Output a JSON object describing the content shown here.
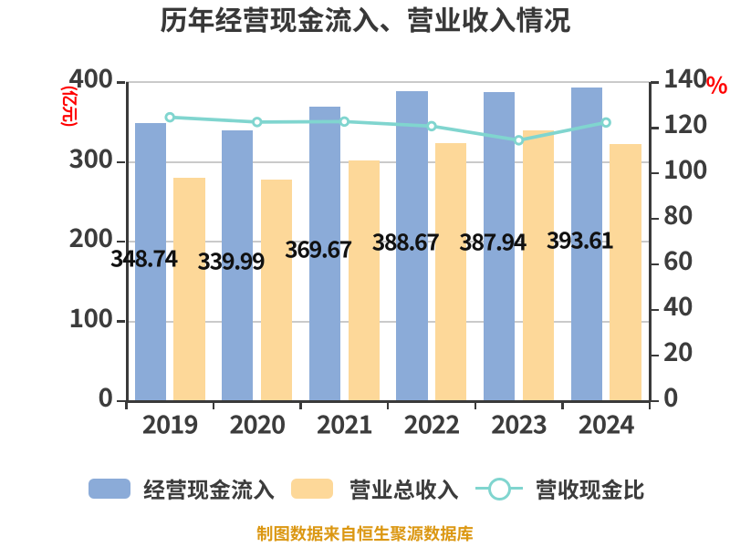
{
  "chart_data": {
    "type": "bar+line",
    "title": "历年经营现金流入、营业收入情况",
    "categories": [
      "2019",
      "2020",
      "2021",
      "2022",
      "2023",
      "2024"
    ],
    "series": [
      {
        "name": "经营现金流入",
        "type": "bar",
        "axis": "left",
        "color": "#8BABD8",
        "values": [
          348.74,
          339.99,
          369.67,
          388.67,
          387.94,
          393.61
        ],
        "value_labels": [
          "348.74",
          "339.99",
          "369.67",
          "388.67",
          "387.94",
          "393.61"
        ]
      },
      {
        "name": "营业总收入",
        "type": "bar",
        "axis": "left",
        "color": "#FDD899",
        "values": [
          280.6,
          278.4,
          302.1,
          323.3,
          340.3,
          323.1
        ]
      },
      {
        "name": "营收现金比",
        "type": "line",
        "axis": "right",
        "color": "#80D5CF",
        "values": [
          124.7,
          122.6,
          122.8,
          120.8,
          114.6,
          122.4
        ]
      }
    ],
    "left_axis": {
      "label": "(亿元)",
      "ticks": [
        0,
        100,
        200,
        300,
        400
      ],
      "range": [
        0,
        400
      ]
    },
    "right_axis": {
      "label": "%",
      "ticks": [
        0,
        20,
        40,
        60,
        80,
        100,
        120,
        140
      ],
      "range": [
        0,
        140
      ]
    },
    "grid": true,
    "legend_position": "bottom",
    "source_note": "制图数据来自恒生聚源数据库",
    "style": {
      "axis_color": "#3A3A3A",
      "tick_label_color": "#3C3C3C",
      "title_color": "#383838",
      "grid_color": "#CACACA",
      "value_label_color": "#111111",
      "axis_unit_color": "#FF0000",
      "source_note_color": "#DB9712",
      "marker_fill": "#FFFFFF",
      "background": "#FFFFFF"
    }
  }
}
